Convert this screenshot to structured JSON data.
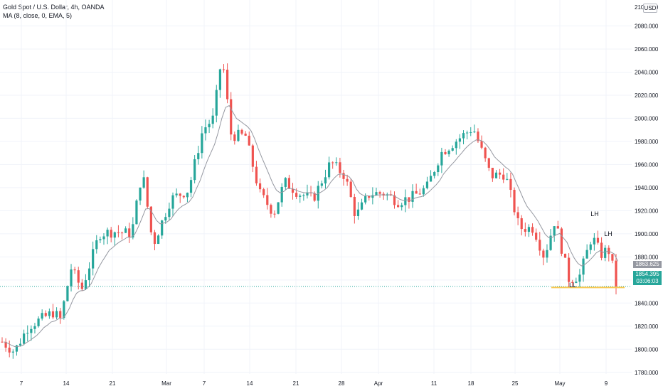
{
  "legend": {
    "symbol": "Gold Spot / U.S. Dollar, 4h, OANDA",
    "indicator": "MA (8, close, 0, EMA, 5)"
  },
  "currency_badge": "USD",
  "price_tags": {
    "ma_value": "1863.625",
    "last_price": "1854.395",
    "countdown": "03:06:03"
  },
  "annotations": [
    "LL",
    "LH",
    "LH"
  ],
  "colors": {
    "up": "#26a69a",
    "down": "#ef5350",
    "ma_line": "#9598a1",
    "price_line": "#26a69a",
    "support_line": "#f9c74f",
    "grid": "#f0f3fa"
  },
  "chart_data": {
    "type": "candlestick",
    "title": "Gold Spot / U.S. Dollar, 4h, OANDA",
    "ylim": [
      1770,
      2100
    ],
    "y_ticks": [
      1780,
      1800,
      1820,
      1840,
      1860,
      1880,
      1900,
      1920,
      1940,
      1960,
      1980,
      2000,
      2020,
      2040,
      2060,
      2080
    ],
    "x_ticks": [
      "7",
      "14",
      "21",
      "Mar",
      "7",
      "14",
      "21",
      "28",
      "Apr",
      "11",
      "18",
      "25",
      "May",
      "9"
    ],
    "price_path": [
      {
        "t": 0,
        "p": 1808
      },
      {
        "t": 20,
        "p": 1798
      },
      {
        "t": 40,
        "p": 1820
      },
      {
        "t": 75,
        "p": 1832
      },
      {
        "t": 85,
        "p": 1826
      },
      {
        "t": 100,
        "p": 1870
      },
      {
        "t": 115,
        "p": 1852
      },
      {
        "t": 140,
        "p": 1900
      },
      {
        "t": 160,
        "p": 1902
      },
      {
        "t": 185,
        "p": 1900
      },
      {
        "t": 200,
        "p": 1955
      },
      {
        "t": 215,
        "p": 1890
      },
      {
        "t": 240,
        "p": 1930
      },
      {
        "t": 265,
        "p": 1938
      },
      {
        "t": 285,
        "p": 1990
      },
      {
        "t": 300,
        "p": 2000
      },
      {
        "t": 312,
        "p": 2055
      },
      {
        "t": 325,
        "p": 1985
      },
      {
        "t": 345,
        "p": 1985
      },
      {
        "t": 365,
        "p": 1935
      },
      {
        "t": 385,
        "p": 1918
      },
      {
        "t": 400,
        "p": 1945
      },
      {
        "t": 420,
        "p": 1935
      },
      {
        "t": 440,
        "p": 1930
      },
      {
        "t": 465,
        "p": 1962
      },
      {
        "t": 485,
        "p": 1950
      },
      {
        "t": 500,
        "p": 1915
      },
      {
        "t": 520,
        "p": 1935
      },
      {
        "t": 540,
        "p": 1935
      },
      {
        "t": 560,
        "p": 1928
      },
      {
        "t": 580,
        "p": 1932
      },
      {
        "t": 600,
        "p": 1940
      },
      {
        "t": 620,
        "p": 1970
      },
      {
        "t": 640,
        "p": 1980
      },
      {
        "t": 665,
        "p": 1992
      },
      {
        "t": 690,
        "p": 1950
      },
      {
        "t": 710,
        "p": 1952
      },
      {
        "t": 730,
        "p": 1905
      },
      {
        "t": 750,
        "p": 1905
      },
      {
        "t": 765,
        "p": 1880
      },
      {
        "t": 780,
        "p": 1912
      },
      {
        "t": 800,
        "p": 1860
      },
      {
        "t": 815,
        "p": 1864
      },
      {
        "t": 832,
        "p": 1898
      },
      {
        "t": 845,
        "p": 1882
      },
      {
        "t": 855,
        "p": 1887
      },
      {
        "t": 868,
        "p": 1854.395
      }
    ],
    "candle_count": 170,
    "ma": {
      "name": "MA (8, close, 0, EMA, 5)",
      "last": 1863.625
    },
    "last_price": 1854.395,
    "support_level": 1853.5
  }
}
